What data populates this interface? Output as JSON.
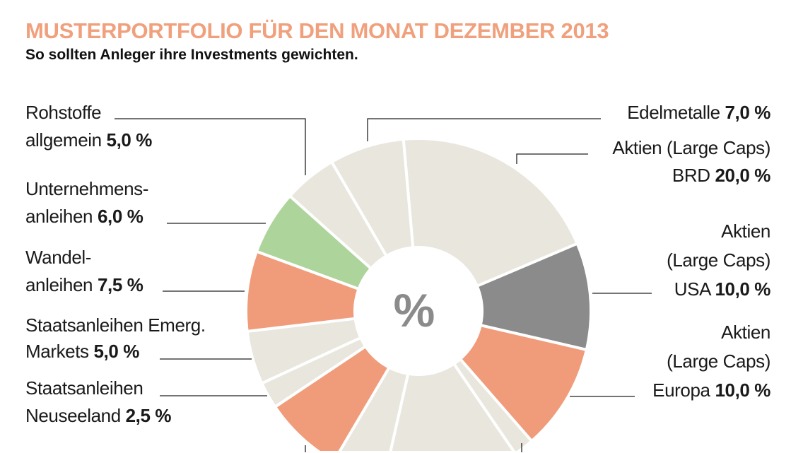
{
  "chart_data": {
    "type": "pie",
    "variant": "donut",
    "title": "MUSTERPORTFOLIO FÜR DEN MONAT DEZEMBER 2013",
    "subtitle": "So sollten Anleger ihre Investments gewichten.",
    "center_label": "%",
    "unit": "%",
    "slices": [
      {
        "label": [
          "Aktien (Large Caps)",
          "BRD"
        ],
        "value": 20.0,
        "value_text": "20,0 %",
        "color": "#e8e6dd"
      },
      {
        "label": [
          "Aktien",
          "(Large Caps)",
          "USA"
        ],
        "value": 10.0,
        "value_text": "10,0 %",
        "color": "#8b8b8b"
      },
      {
        "label": [
          "Aktien",
          "(Large Caps)",
          "Europa"
        ],
        "value": 10.0,
        "value_text": "10,0 %",
        "color": "#f09c7a"
      },
      {
        "label": null,
        "value": 2.0,
        "color": "#e8e6dd"
      },
      {
        "label": null,
        "value": 12.0,
        "color": "#e8e6dd"
      },
      {
        "label": null,
        "value": 5.0,
        "color": "#e8e6dd"
      },
      {
        "label": null,
        "value": 8.0,
        "color": "#f09c7a"
      },
      {
        "label": [
          "Staatsanleihen",
          "Neuseeland"
        ],
        "value": 2.5,
        "value_text": "2,5 %",
        "color": "#e8e6dd"
      },
      {
        "label": [
          "Staatsanleihen Emerg.",
          "Markets"
        ],
        "value": 5.0,
        "value_text": "5,0 %",
        "color": "#e8e6dd"
      },
      {
        "label": [
          "Wandel-",
          "anleihen"
        ],
        "value": 7.5,
        "value_text": "7,5 %",
        "color": "#f09c7a"
      },
      {
        "label": [
          "Unternehmens-",
          "anleihen"
        ],
        "value": 6.0,
        "value_text": "6,0 %",
        "color": "#add49a"
      },
      {
        "label": [
          "Rohstoffe",
          "allgemein"
        ],
        "value": 5.0,
        "value_text": "5,0 %",
        "color": "#e8e6dd"
      },
      {
        "label": [
          "Edelmetalle"
        ],
        "value": 7.0,
        "value_text": "7,0 %",
        "color": "#e8e6dd"
      }
    ],
    "colors": {
      "title": "#f0a07c",
      "center_label": "#8b8b8b"
    }
  }
}
